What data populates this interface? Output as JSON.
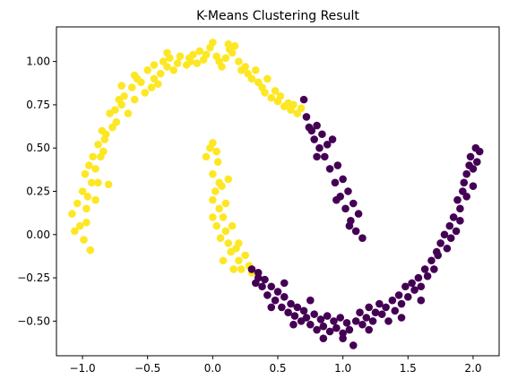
{
  "chart_data": {
    "type": "scatter",
    "title": "K-Means Clustering Result",
    "xlabel": "",
    "ylabel": "",
    "xlim": [
      -1.2,
      2.2
    ],
    "ylim": [
      -0.7,
      1.2
    ],
    "xticks": [
      -1.0,
      -0.5,
      0.0,
      0.5,
      1.0,
      1.5,
      2.0
    ],
    "xtick_labels": [
      "−1.0",
      "−0.5",
      "0.0",
      "0.5",
      "1.0",
      "1.5",
      "2.0"
    ],
    "yticks": [
      -0.5,
      -0.25,
      0.0,
      0.25,
      0.5,
      0.75,
      1.0
    ],
    "ytick_labels": [
      "−0.50",
      "−0.25",
      "0.00",
      "0.25",
      "0.50",
      "0.75",
      "1.00"
    ],
    "grid": false,
    "legend": "none",
    "series": [
      {
        "color": "#fde725",
        "points": [
          [
            -1.08,
            0.12
          ],
          [
            -1.06,
            0.02
          ],
          [
            -1.04,
            0.18
          ],
          [
            -1.02,
            0.05
          ],
          [
            -1.0,
            0.25
          ],
          [
            -0.99,
            -0.03
          ],
          [
            -0.98,
            0.35
          ],
          [
            -0.97,
            0.07
          ],
          [
            -0.96,
            0.22
          ],
          [
            -0.95,
            0.4
          ],
          [
            -0.94,
            -0.09
          ],
          [
            -0.93,
            0.3
          ],
          [
            -0.92,
            0.45
          ],
          [
            -0.9,
            0.38
          ],
          [
            -0.88,
            0.52
          ],
          [
            -0.86,
            0.45
          ],
          [
            -0.85,
            0.6
          ],
          [
            -0.83,
            0.55
          ],
          [
            -0.82,
            0.58
          ],
          [
            -0.8,
            0.29
          ],
          [
            -0.79,
            0.7
          ],
          [
            -0.77,
            0.62
          ],
          [
            -0.75,
            0.72
          ],
          [
            -0.72,
            0.78
          ],
          [
            -0.7,
            0.75
          ],
          [
            -0.68,
            0.8
          ],
          [
            -0.65,
            0.7
          ],
          [
            -0.62,
            0.85
          ],
          [
            -0.6,
            0.78
          ],
          [
            -0.58,
            0.9
          ],
          [
            -0.55,
            0.88
          ],
          [
            -0.52,
            0.82
          ],
          [
            -0.5,
            0.95
          ],
          [
            -0.47,
            0.85
          ],
          [
            -0.45,
            0.9
          ],
          [
            -0.42,
            0.87
          ],
          [
            -0.4,
            0.93
          ],
          [
            -0.38,
            1.0
          ],
          [
            -0.35,
            0.97
          ],
          [
            -0.33,
            1.02
          ],
          [
            -0.3,
            0.95
          ],
          [
            -0.27,
            0.99
          ],
          [
            -0.25,
            1.03
          ],
          [
            -0.2,
            0.98
          ],
          [
            -0.17,
            1.0
          ],
          [
            -0.15,
            1.04
          ],
          [
            -0.12,
            0.99
          ],
          [
            -0.1,
            1.06
          ],
          [
            -0.07,
            1.01
          ],
          [
            -0.05,
            1.04
          ],
          [
            -0.02,
            1.08
          ],
          [
            0.0,
            1.11
          ],
          [
            0.03,
            1.03
          ],
          [
            0.05,
            1.0
          ],
          [
            0.07,
            0.97
          ],
          [
            0.1,
            1.02
          ],
          [
            0.13,
            1.07
          ],
          [
            0.15,
            1.05
          ],
          [
            0.17,
            1.09
          ],
          [
            0.2,
            1.0
          ],
          [
            0.22,
            0.95
          ],
          [
            0.25,
            0.97
          ],
          [
            0.27,
            0.93
          ],
          [
            0.3,
            0.9
          ],
          [
            0.33,
            0.95
          ],
          [
            0.35,
            0.88
          ],
          [
            0.38,
            0.85
          ],
          [
            0.4,
            0.82
          ],
          [
            0.42,
            0.9
          ],
          [
            0.45,
            0.79
          ],
          [
            0.48,
            0.83
          ],
          [
            0.5,
            0.77
          ],
          [
            0.52,
            0.8
          ],
          [
            0.55,
            0.74
          ],
          [
            0.58,
            0.76
          ],
          [
            0.6,
            0.72
          ],
          [
            0.62,
            0.75
          ],
          [
            0.65,
            0.7
          ],
          [
            0.68,
            0.73
          ],
          [
            -0.7,
            0.86
          ],
          [
            -0.6,
            0.92
          ],
          [
            -0.45,
            0.98
          ],
          [
            -0.35,
            1.05
          ],
          [
            -0.18,
            1.02
          ],
          [
            0.12,
            1.1
          ],
          [
            -0.88,
            0.3
          ],
          [
            -0.9,
            0.2
          ],
          [
            -0.97,
            0.15
          ],
          [
            -0.84,
            0.48
          ],
          [
            -0.74,
            0.65
          ],
          [
            -0.02,
            0.5
          ],
          [
            0.0,
            0.53
          ],
          [
            0.03,
            0.48
          ],
          [
            -0.05,
            0.45
          ],
          [
            0.04,
            0.42
          ],
          [
            0.0,
            0.35
          ],
          [
            0.05,
            0.3
          ],
          [
            0.02,
            0.25
          ],
          [
            0.07,
            0.28
          ],
          [
            0.0,
            0.2
          ],
          [
            0.05,
            0.15
          ],
          [
            0.08,
            0.1
          ],
          [
            0.03,
            0.05
          ],
          [
            0.1,
            0.02
          ],
          [
            0.06,
            -0.02
          ],
          [
            0.12,
            -0.05
          ],
          [
            0.15,
            0.05
          ],
          [
            0.14,
            -0.1
          ],
          [
            0.18,
            -0.08
          ],
          [
            0.2,
            -0.15
          ],
          [
            0.22,
            -0.2
          ],
          [
            0.25,
            -0.12
          ],
          [
            0.28,
            -0.18
          ],
          [
            0.3,
            -0.22
          ],
          [
            0.1,
            0.18
          ],
          [
            0.12,
            0.32
          ],
          [
            0.0,
            0.1
          ],
          [
            0.08,
            -0.15
          ],
          [
            0.2,
            -0.05
          ],
          [
            0.16,
            -0.2
          ]
        ]
      },
      {
        "color": "#440154",
        "points": [
          [
            0.7,
            0.78
          ],
          [
            0.72,
            0.68
          ],
          [
            0.74,
            0.62
          ],
          [
            0.76,
            0.6
          ],
          [
            0.78,
            0.55
          ],
          [
            0.8,
            0.63
          ],
          [
            0.82,
            0.5
          ],
          [
            0.84,
            0.58
          ],
          [
            0.86,
            0.45
          ],
          [
            0.88,
            0.52
          ],
          [
            0.9,
            0.38
          ],
          [
            0.92,
            0.55
          ],
          [
            0.94,
            0.3
          ],
          [
            0.96,
            0.4
          ],
          [
            0.98,
            0.22
          ],
          [
            1.0,
            0.32
          ],
          [
            1.02,
            0.15
          ],
          [
            1.04,
            0.25
          ],
          [
            1.06,
            0.08
          ],
          [
            1.08,
            0.18
          ],
          [
            1.1,
            0.02
          ],
          [
            1.12,
            0.12
          ],
          [
            1.15,
            -0.02
          ],
          [
            0.8,
            0.45
          ],
          [
            0.95,
            0.2
          ],
          [
            1.05,
            0.05
          ],
          [
            0.3,
            -0.2
          ],
          [
            0.33,
            -0.28
          ],
          [
            0.35,
            -0.22
          ],
          [
            0.38,
            -0.3
          ],
          [
            0.4,
            -0.26
          ],
          [
            0.42,
            -0.35
          ],
          [
            0.45,
            -0.3
          ],
          [
            0.48,
            -0.38
          ],
          [
            0.5,
            -0.33
          ],
          [
            0.53,
            -0.42
          ],
          [
            0.55,
            -0.36
          ],
          [
            0.58,
            -0.45
          ],
          [
            0.6,
            -0.4
          ],
          [
            0.63,
            -0.47
          ],
          [
            0.65,
            -0.42
          ],
          [
            0.68,
            -0.5
          ],
          [
            0.7,
            -0.44
          ],
          [
            0.72,
            -0.48
          ],
          [
            0.75,
            -0.52
          ],
          [
            0.78,
            -0.46
          ],
          [
            0.8,
            -0.55
          ],
          [
            0.83,
            -0.49
          ],
          [
            0.85,
            -0.53
          ],
          [
            0.88,
            -0.47
          ],
          [
            0.9,
            -0.56
          ],
          [
            0.93,
            -0.5
          ],
          [
            0.95,
            -0.54
          ],
          [
            0.98,
            -0.48
          ],
          [
            1.0,
            -0.57
          ],
          [
            1.03,
            -0.51
          ],
          [
            1.05,
            -0.55
          ],
          [
            1.08,
            -0.64
          ],
          [
            1.1,
            -0.5
          ],
          [
            1.13,
            -0.45
          ],
          [
            1.15,
            -0.52
          ],
          [
            1.18,
            -0.48
          ],
          [
            1.2,
            -0.42
          ],
          [
            1.23,
            -0.5
          ],
          [
            1.25,
            -0.45
          ],
          [
            1.28,
            -0.4
          ],
          [
            1.3,
            -0.46
          ],
          [
            1.33,
            -0.42
          ],
          [
            1.35,
            -0.5
          ],
          [
            1.38,
            -0.38
          ],
          [
            1.4,
            -0.44
          ],
          [
            1.43,
            -0.35
          ],
          [
            1.45,
            -0.4
          ],
          [
            1.48,
            -0.3
          ],
          [
            1.5,
            -0.36
          ],
          [
            1.53,
            -0.28
          ],
          [
            1.55,
            -0.32
          ],
          [
            1.58,
            -0.25
          ],
          [
            1.6,
            -0.3
          ],
          [
            1.63,
            -0.2
          ],
          [
            1.65,
            -0.24
          ],
          [
            1.68,
            -0.15
          ],
          [
            1.7,
            -0.2
          ],
          [
            1.72,
            -0.1
          ],
          [
            1.75,
            -0.05
          ],
          [
            1.78,
            0.0
          ],
          [
            1.8,
            -0.08
          ],
          [
            1.82,
            0.05
          ],
          [
            1.85,
            0.1
          ],
          [
            1.87,
            0.02
          ],
          [
            1.88,
            0.2
          ],
          [
            1.9,
            0.15
          ],
          [
            1.92,
            0.25
          ],
          [
            1.93,
            0.3
          ],
          [
            1.95,
            0.35
          ],
          [
            1.97,
            0.4
          ],
          [
            1.98,
            0.45
          ],
          [
            2.0,
            0.38
          ],
          [
            2.02,
            0.5
          ],
          [
            2.03,
            0.42
          ],
          [
            2.05,
            0.48
          ],
          [
            2.0,
            0.28
          ],
          [
            1.95,
            0.22
          ],
          [
            1.9,
            0.08
          ],
          [
            1.83,
            -0.02
          ],
          [
            1.73,
            -0.12
          ],
          [
            0.45,
            -0.42
          ],
          [
            0.62,
            -0.52
          ],
          [
            0.85,
            -0.6
          ],
          [
            1.0,
            -0.6
          ],
          [
            1.2,
            -0.55
          ],
          [
            1.45,
            -0.48
          ],
          [
            1.6,
            -0.38
          ],
          [
            0.35,
            -0.25
          ],
          [
            0.55,
            -0.28
          ],
          [
            0.75,
            -0.38
          ]
        ]
      }
    ]
  }
}
